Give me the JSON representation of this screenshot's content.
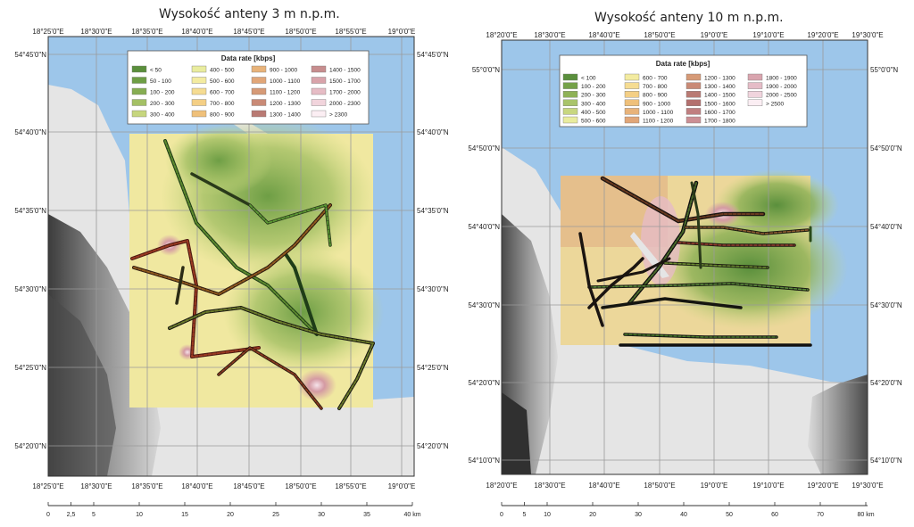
{
  "left_map": {
    "title": "Wysokość anteny 3 m n.p.m.",
    "lon_labels": [
      "18°25'0\"E",
      "18°30'0\"E",
      "18°35'0\"E",
      "18°40'0\"E",
      "18°45'0\"E",
      "18°50'0\"E",
      "18°55'0\"E",
      "19°0'0\"E"
    ],
    "lat_labels": [
      "54°45'0\"N",
      "54°40'0\"N",
      "54°35'0\"N",
      "54°30'0\"N",
      "54°25'0\"N",
      "54°20'0\"N"
    ],
    "legend_title": "Data rate [kbps]",
    "legend": [
      {
        "label": "< 50",
        "color": "#5a8f3c"
      },
      {
        "label": "50 - 100",
        "color": "#6e9e45"
      },
      {
        "label": "100 - 200",
        "color": "#86ad52"
      },
      {
        "label": "200 - 300",
        "color": "#a4c065"
      },
      {
        "label": "300 - 400",
        "color": "#c6d67e"
      },
      {
        "label": "400 - 500",
        "color": "#e9ec9e"
      },
      {
        "label": "500 - 600",
        "color": "#f3eba0"
      },
      {
        "label": "600 - 700",
        "color": "#f5dc92"
      },
      {
        "label": "700 - 800",
        "color": "#f4cf85"
      },
      {
        "label": "800 - 900",
        "color": "#efc07a"
      },
      {
        "label": "900 - 1000",
        "color": "#e8b37a"
      },
      {
        "label": "1000 - 1100",
        "color": "#e1a678"
      },
      {
        "label": "1100 - 1200",
        "color": "#d69a77"
      },
      {
        "label": "1200 - 1300",
        "color": "#c98a76"
      },
      {
        "label": "1300 - 1400",
        "color": "#b97a73"
      },
      {
        "label": "1400 - 1500",
        "color": "#c78d8e"
      },
      {
        "label": "1500 - 1700",
        "color": "#d8a3aa"
      },
      {
        "label": "1700 - 2000",
        "color": "#e6bcc5"
      },
      {
        "label": "2000 - 2300",
        "color": "#f1d4dc"
      },
      {
        "label": "> 2300",
        "color": "#fbeef3"
      }
    ],
    "scale_labels": [
      "0",
      "2,5",
      "5",
      "10",
      "15",
      "20",
      "25",
      "30",
      "35",
      "40 km"
    ]
  },
  "right_map": {
    "title": "Wysokość anteny 10 m n.p.m.",
    "lon_labels": [
      "18°20'0\"E",
      "18°30'0\"E",
      "18°40'0\"E",
      "18°50'0\"E",
      "19°0'0\"E",
      "19°10'0\"E",
      "19°20'0\"E",
      "19°30'0\"E"
    ],
    "lat_labels": [
      "55°0'0\"N",
      "54°50'0\"N",
      "54°40'0\"N",
      "54°30'0\"N",
      "54°20'0\"N",
      "54°10'0\"N"
    ],
    "legend_title": "Data rate [kbps]",
    "legend": [
      {
        "label": "< 100",
        "color": "#5a8f3c"
      },
      {
        "label": "100 - 200",
        "color": "#74a148"
      },
      {
        "label": "200 - 300",
        "color": "#8fb257"
      },
      {
        "label": "300 - 400",
        "color": "#a9c46a"
      },
      {
        "label": "400 - 500",
        "color": "#c8d780"
      },
      {
        "label": "500 - 600",
        "color": "#e9ec9e"
      },
      {
        "label": "600 - 700",
        "color": "#f3eba0"
      },
      {
        "label": "700 - 800",
        "color": "#f5dc92"
      },
      {
        "label": "800 - 900",
        "color": "#f4cf85"
      },
      {
        "label": "900 - 1000",
        "color": "#efc07a"
      },
      {
        "label": "1000 - 1100",
        "color": "#e8b37a"
      },
      {
        "label": "1100 - 1200",
        "color": "#e1a678"
      },
      {
        "label": "1200 - 1300",
        "color": "#d69a77"
      },
      {
        "label": "1300 - 1400",
        "color": "#c98a76"
      },
      {
        "label": "1400 - 1500",
        "color": "#b97a73"
      },
      {
        "label": "1500 - 1600",
        "color": "#b3706e"
      },
      {
        "label": "1600 - 1700",
        "color": "#c07f80"
      },
      {
        "label": "1700 - 1800",
        "color": "#cc8f94"
      },
      {
        "label": "1800 - 1900",
        "color": "#d9a4ae"
      },
      {
        "label": "1900 - 2000",
        "color": "#e5bcc7"
      },
      {
        "label": "2000 - 2500",
        "color": "#f0d4dd"
      },
      {
        "label": "> 2500",
        "color": "#fbeef3"
      }
    ],
    "scale_labels": [
      "0",
      "5",
      "10",
      "20",
      "30",
      "40",
      "50",
      "60",
      "70",
      "80 km"
    ]
  }
}
